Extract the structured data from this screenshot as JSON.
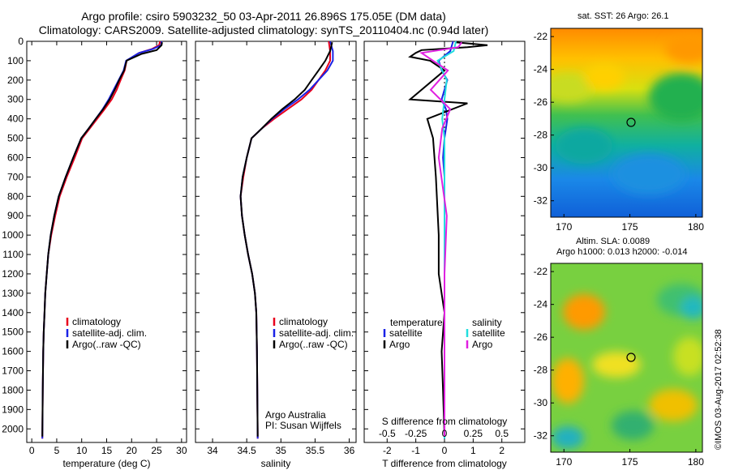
{
  "title_line1": "Argo profile: csiro 5903232_50 03-Apr-2011 26.896S 175.05E (DM data)",
  "title_line2": "Climatology: CARS2009. Satellite-adjusted climatology: synTS_20110404.nc (0.94d later)",
  "colors": {
    "climatology": "#e8001c",
    "satellite": "#1a22e6",
    "argo": "#000000",
    "satellite_salinity": "#22dede",
    "argo_salinity": "#e020e0"
  },
  "chart_data": [
    {
      "type": "line",
      "id": "temperature",
      "xlabel": "temperature (deg C)",
      "xlim": [
        -1,
        31
      ],
      "xticks": [
        0,
        5,
        10,
        15,
        20,
        25,
        30
      ],
      "ylim": [
        2070,
        0
      ],
      "yticks": [
        0,
        100,
        200,
        300,
        400,
        500,
        600,
        700,
        800,
        900,
        1000,
        1100,
        1200,
        1300,
        1400,
        1500,
        1600,
        1700,
        1800,
        1900,
        2000
      ],
      "legend": [
        "climatology",
        "satellite-adj. clim.",
        "Argo(..raw -QC)"
      ],
      "series": [
        {
          "name": "climatology",
          "x": [
            25.7,
            25.5,
            24.0,
            21.5,
            19.0,
            18.6,
            17.8,
            17.0,
            16.0,
            14.6,
            13.1,
            11.6,
            10.1,
            8.6,
            7.0,
            5.6,
            4.7,
            3.9,
            3.3,
            3.0,
            2.7,
            2.55,
            2.4,
            2.3,
            2.2,
            2.12
          ],
          "y": [
            0,
            20,
            40,
            60,
            100,
            150,
            200,
            250,
            300,
            350,
            400,
            450,
            500,
            600,
            700,
            800,
            900,
            1000,
            1100,
            1200,
            1300,
            1400,
            1500,
            1600,
            1800,
            2050
          ]
        },
        {
          "name": "satellite-adj. clim.",
          "x": [
            26.0,
            25.9,
            24.2,
            21.5,
            18.9,
            18.4,
            17.4,
            16.4,
            15.4,
            14.2,
            12.8,
            11.4,
            9.9,
            8.3,
            6.8,
            5.4,
            4.5,
            3.8,
            3.3,
            3.0,
            2.7,
            2.55,
            2.4,
            2.3,
            2.2,
            2.12
          ],
          "y": [
            0,
            20,
            40,
            60,
            100,
            150,
            200,
            250,
            300,
            350,
            400,
            450,
            500,
            600,
            700,
            800,
            900,
            1000,
            1100,
            1200,
            1300,
            1400,
            1500,
            1600,
            1800,
            2050
          ]
        },
        {
          "name": "Argo(..raw -QC)",
          "x": [
            26.1,
            26.0,
            25.0,
            22.0,
            19.0,
            18.5,
            17.5,
            16.6,
            15.6,
            14.3,
            12.8,
            11.4,
            9.9,
            8.3,
            6.8,
            5.4,
            4.5,
            3.8,
            3.3,
            3.0,
            2.7,
            2.55,
            2.4,
            2.3,
            2.2,
            2.12
          ],
          "y": [
            5,
            20,
            45,
            65,
            100,
            150,
            200,
            250,
            300,
            350,
            400,
            450,
            500,
            600,
            700,
            800,
            900,
            1000,
            1100,
            1200,
            1300,
            1400,
            1500,
            1600,
            1800,
            2040
          ]
        }
      ]
    },
    {
      "type": "line",
      "id": "salinity",
      "xlabel": "salinity",
      "xlim": [
        33.75,
        36.1
      ],
      "xticks": [
        34,
        34.5,
        35,
        35.5,
        36
      ],
      "ylim": [
        2070,
        0
      ],
      "legend": [
        "climatology",
        "satellite-adj. clim.",
        "Argo(..raw -QC)"
      ],
      "annotation": [
        "Argo Australia",
        "PI: Susan Wijffels"
      ],
      "series": [
        {
          "name": "climatology",
          "x": [
            35.7,
            35.72,
            35.72,
            35.65,
            35.55,
            35.45,
            35.3,
            35.1,
            34.9,
            34.72,
            34.57,
            34.5,
            34.45,
            34.41,
            34.43,
            34.47,
            34.52,
            34.58,
            34.62,
            34.64,
            34.65,
            34.66
          ],
          "y": [
            0,
            50,
            100,
            150,
            200,
            250,
            300,
            350,
            400,
            450,
            500,
            600,
            700,
            800,
            900,
            1000,
            1100,
            1200,
            1300,
            1400,
            1600,
            2050
          ]
        },
        {
          "name": "satellite-adj. clim.",
          "x": [
            35.72,
            35.76,
            35.76,
            35.68,
            35.55,
            35.42,
            35.25,
            35.05,
            34.87,
            34.72,
            34.57,
            34.5,
            34.44,
            34.41,
            34.43,
            34.47,
            34.52,
            34.58,
            34.62,
            34.64,
            34.65,
            34.66
          ],
          "y": [
            0,
            50,
            100,
            150,
            200,
            250,
            300,
            350,
            400,
            450,
            500,
            600,
            700,
            800,
            900,
            1000,
            1100,
            1200,
            1300,
            1400,
            1600,
            2050
          ]
        },
        {
          "name": "Argo(..raw -QC)",
          "x": [
            35.75,
            35.72,
            35.65,
            35.55,
            35.45,
            35.35,
            35.2,
            35.02,
            34.86,
            34.72,
            34.57,
            34.5,
            34.44,
            34.41,
            34.43,
            34.47,
            34.52,
            34.58,
            34.62,
            34.64,
            34.65,
            34.66
          ],
          "y": [
            5,
            50,
            100,
            150,
            200,
            250,
            300,
            350,
            400,
            450,
            500,
            600,
            700,
            800,
            900,
            1000,
            1100,
            1200,
            1300,
            1400,
            1600,
            2040
          ]
        }
      ]
    },
    {
      "type": "line",
      "id": "difference",
      "xlabel": "T difference from climatology",
      "xlabel_top": "S difference from climatology",
      "xlim": [
        -2.8,
        2.8
      ],
      "xticks": [
        -2,
        -1,
        0,
        1,
        2
      ],
      "xticks_top": [
        "-0.5",
        "-0.25",
        "0",
        "0.25",
        "0.5"
      ],
      "ylim": [
        2070,
        0
      ],
      "legend_temperature": [
        "temperature",
        "satellite",
        "Argo"
      ],
      "legend_salinity": [
        "salinity",
        "satellite",
        "Argo"
      ],
      "series": [
        {
          "name": "T satellite",
          "x": [
            0.3,
            0.2,
            -0.2,
            -0.1,
            0.1,
            0.0,
            -0.1,
            0.05,
            0.1,
            0.0,
            -0.05,
            0.0,
            0.0,
            0.0,
            0.0,
            0.0,
            0.0
          ],
          "y": [
            0,
            50,
            100,
            150,
            200,
            250,
            300,
            350,
            400,
            500,
            600,
            700,
            800,
            1000,
            1300,
            1600,
            2050
          ]
        },
        {
          "name": "T Argo",
          "x": [
            0.4,
            1.5,
            0.8,
            -0.8,
            -1.0,
            -1.2,
            -0.5,
            0.0,
            -1.2,
            0.8,
            -0.6,
            -0.4,
            -0.3,
            -0.2,
            -0.2,
            0.0,
            -0.1,
            -0.05,
            0.0
          ],
          "y": [
            5,
            20,
            30,
            45,
            60,
            80,
            100,
            150,
            300,
            320,
            400,
            500,
            700,
            1000,
            1200,
            1400,
            1600,
            1800,
            2040
          ]
        },
        {
          "name": "S satellite",
          "x": [
            0.1,
            0.08,
            -0.06,
            -0.02,
            0.02,
            0.0,
            -0.02,
            0.0,
            0.0,
            0.0,
            0.0,
            0.0
          ],
          "y": [
            0,
            50,
            100,
            150,
            200,
            300,
            400,
            500,
            700,
            1000,
            1500,
            2050
          ]
        },
        {
          "name": "S Argo",
          "x": [
            0.15,
            0.12,
            -0.2,
            -0.1,
            0.03,
            -0.12,
            0.05,
            -0.02,
            -0.05,
            0.02,
            0.0,
            0.0,
            0.0
          ],
          "y": [
            5,
            30,
            60,
            100,
            150,
            250,
            350,
            450,
            600,
            900,
            1200,
            1500,
            2040
          ]
        }
      ]
    },
    {
      "type": "heatmap",
      "id": "sst-map",
      "title": "sat. SST: 26 Argo: 26.1",
      "xlim": [
        169,
        180.5
      ],
      "xticks": [
        170,
        175,
        180
      ],
      "ylim": [
        -33,
        -21.5
      ],
      "yticks": [
        -22,
        -24,
        -26,
        -28,
        -30,
        -32
      ],
      "marker": [
        175.05,
        -26.9
      ]
    },
    {
      "type": "heatmap",
      "id": "sla-map",
      "title": "Altim. SLA: 0.0089",
      "subtitle": "Argo h1000: 0.013 h2000: -0.014",
      "xlim": [
        169,
        180.5
      ],
      "xticks": [
        170,
        175,
        180
      ],
      "ylim": [
        -33,
        -21.5
      ],
      "yticks": [
        -22,
        -24,
        -26,
        -28,
        -30,
        -32
      ],
      "marker": [
        175.05,
        -26.9
      ]
    }
  ],
  "credit": "©IMOS 03-Aug-2017 02:52:38"
}
